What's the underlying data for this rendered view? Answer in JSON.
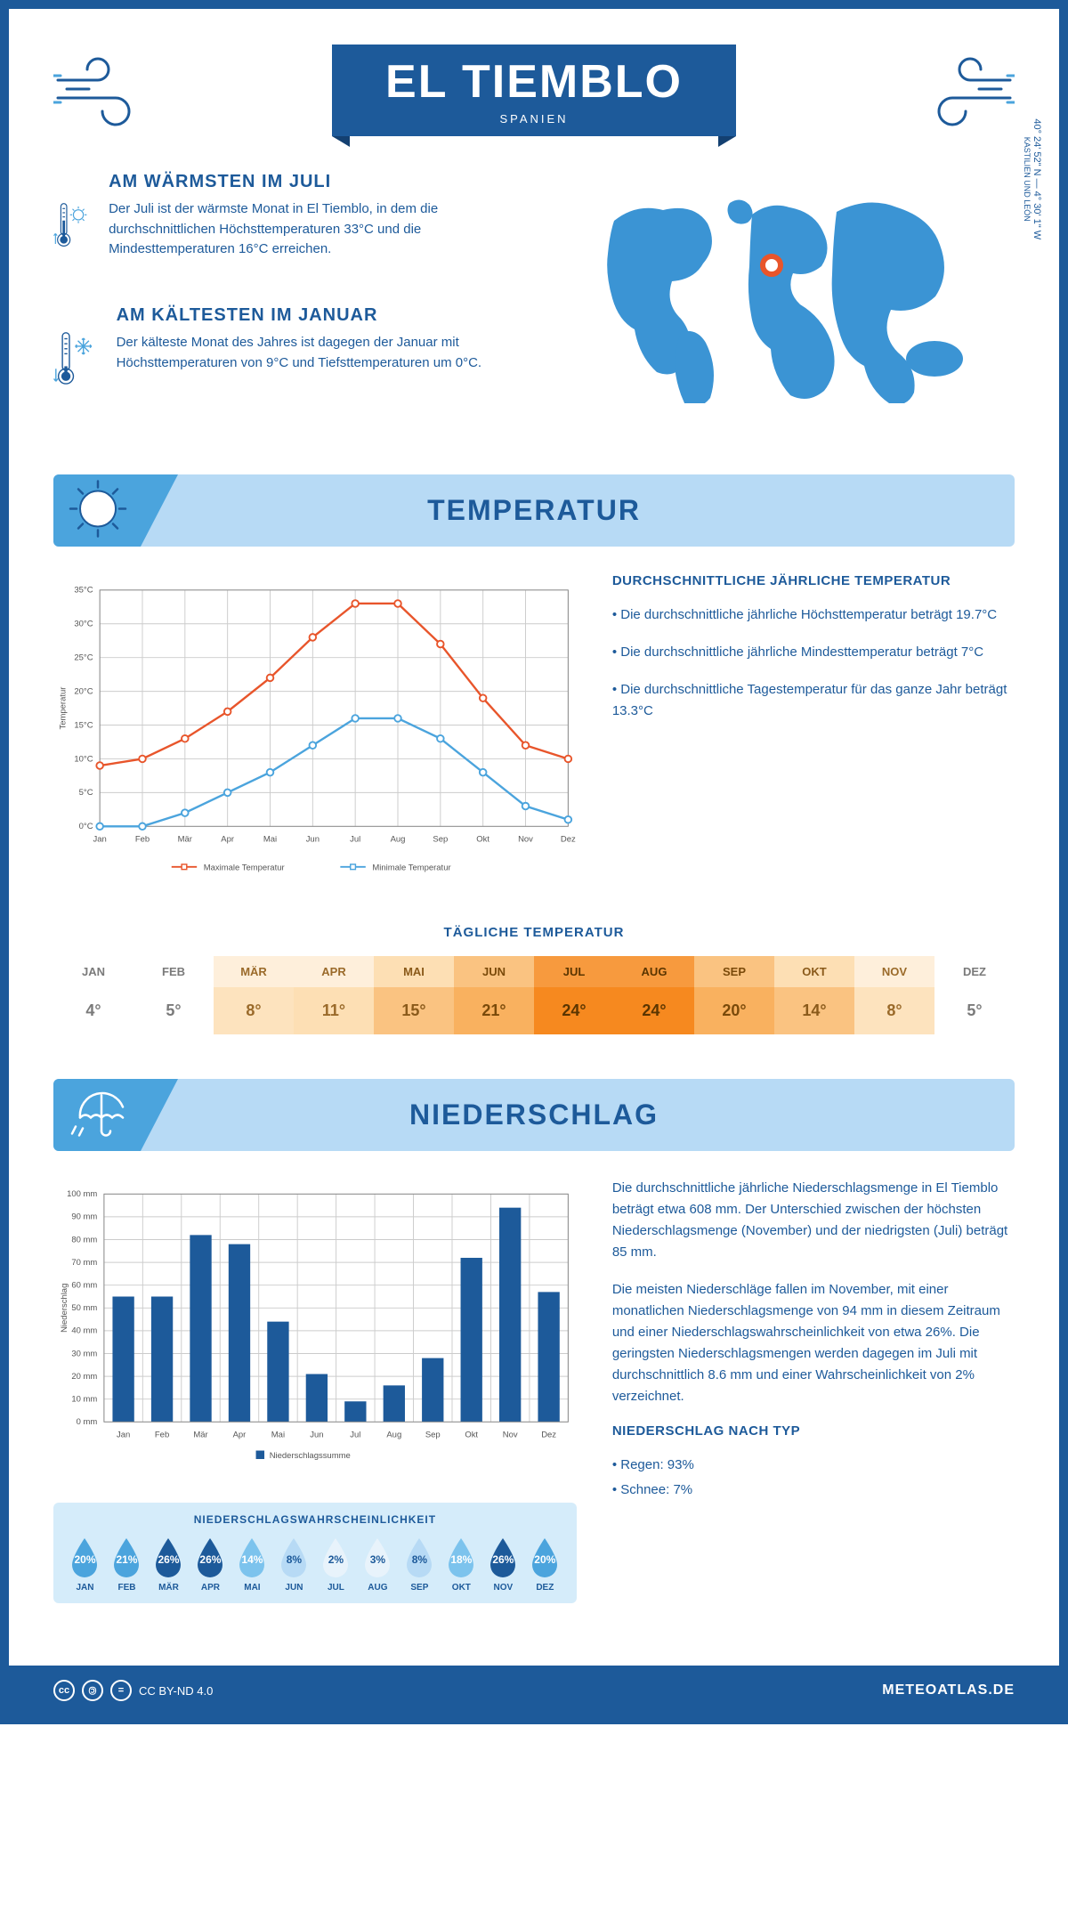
{
  "header": {
    "title": "EL TIEMBLO",
    "country": "SPANIEN"
  },
  "coords": {
    "text": "40° 24' 52\" N — 4° 30' 1\" W",
    "region": "KASTILIEN UND LEÓN"
  },
  "info_warm": {
    "heading": "AM WÄRMSTEN IM JULI",
    "text": "Der Juli ist der wärmste Monat in El Tiemblo, in dem die durchschnittlichen Höchsttemperaturen 33°C und die Mindesttemperaturen 16°C erreichen."
  },
  "info_cold": {
    "heading": "AM KÄLTESTEN IM JANUAR",
    "text": "Der kälteste Monat des Jahres ist dagegen der Januar mit Höchsttemperaturen von 9°C und Tiefsttemperaturen um 0°C."
  },
  "sections": {
    "temp": "TEMPERATUR",
    "precip": "NIEDERSCHLAG"
  },
  "temp_chart": {
    "type": "line",
    "months": [
      "Jan",
      "Feb",
      "Mär",
      "Apr",
      "Mai",
      "Jun",
      "Jul",
      "Aug",
      "Sep",
      "Okt",
      "Nov",
      "Dez"
    ],
    "max_values": [
      9,
      10,
      13,
      17,
      22,
      28,
      33,
      33,
      27,
      19,
      12,
      10
    ],
    "min_values": [
      0,
      0,
      2,
      5,
      8,
      12,
      16,
      16,
      13,
      8,
      3,
      1
    ],
    "max_color": "#e8552b",
    "min_color": "#4ba4dd",
    "ylim": [
      0,
      35
    ],
    "ytick_step": 5,
    "ylabel": "Temperatur",
    "legend_max": "Maximale Temperatur",
    "legend_min": "Minimale Temperatur",
    "grid_color": "#cccccc",
    "axis_fontsize": 10
  },
  "temp_desc": {
    "heading": "DURCHSCHNITTLICHE JÄHRLICHE TEMPERATUR",
    "bullets": [
      "• Die durchschnittliche jährliche Höchsttemperatur beträgt 19.7°C",
      "• Die durchschnittliche jährliche Mindesttemperatur beträgt 7°C",
      "• Die durchschnittliche Tagestemperatur für das ganze Jahr beträgt 13.3°C"
    ]
  },
  "daily": {
    "title": "TÄGLICHE TEMPERATUR",
    "months": [
      "JAN",
      "FEB",
      "MÄR",
      "APR",
      "MAI",
      "JUN",
      "JUL",
      "AUG",
      "SEP",
      "OKT",
      "NOV",
      "DEZ"
    ],
    "values": [
      "4°",
      "5°",
      "8°",
      "11°",
      "15°",
      "21°",
      "24°",
      "24°",
      "20°",
      "14°",
      "8°",
      "5°"
    ],
    "header_colors": [
      "#ffffff",
      "#ffffff",
      "#feefdb",
      "#feefdb",
      "#fddfb4",
      "#fac381",
      "#f79a3e",
      "#f79a3e",
      "#fac381",
      "#fddfb4",
      "#feefdb",
      "#ffffff"
    ],
    "value_colors": [
      "#ffffff",
      "#ffffff",
      "#fde3be",
      "#fddfb4",
      "#fac381",
      "#f9b15f",
      "#f6891f",
      "#f6891f",
      "#f9b15f",
      "#fac381",
      "#fde3be",
      "#ffffff"
    ],
    "text_colors": [
      "#7a7a7a",
      "#7a7a7a",
      "#9a6a2a",
      "#9a6a2a",
      "#8a5a1a",
      "#7a4a0a",
      "#5a3500",
      "#5a3500",
      "#7a4a0a",
      "#8a5a1a",
      "#9a6a2a",
      "#7a7a7a"
    ]
  },
  "precip_chart": {
    "type": "bar",
    "months": [
      "Jan",
      "Feb",
      "Mär",
      "Apr",
      "Mai",
      "Jun",
      "Jul",
      "Aug",
      "Sep",
      "Okt",
      "Nov",
      "Dez"
    ],
    "values": [
      55,
      55,
      82,
      78,
      44,
      21,
      9,
      16,
      28,
      72,
      94,
      57
    ],
    "bar_color": "#1d5a9a",
    "ylim": [
      0,
      100
    ],
    "ytick_step": 10,
    "ylabel": "Niederschlag",
    "legend": "Niederschlagssumme",
    "grid_color": "#cccccc",
    "y_unit": "mm"
  },
  "precip_desc": {
    "para1": "Die durchschnittliche jährliche Niederschlagsmenge in El Tiemblo beträgt etwa 608 mm. Der Unterschied zwischen der höchsten Niederschlagsmenge (November) und der niedrigsten (Juli) beträgt 85 mm.",
    "para2": "Die meisten Niederschläge fallen im November, mit einer monatlichen Niederschlagsmenge von 94 mm in diesem Zeitraum und einer Niederschlagswahrscheinlichkeit von etwa 26%. Die geringsten Niederschlagsmengen werden dagegen im Juli mit durchschnittlich 8.6 mm und einer Wahrscheinlichkeit von 2% verzeichnet.",
    "type_heading": "NIEDERSCHLAG NACH TYP",
    "type1": "• Regen: 93%",
    "type2": "• Schnee: 7%"
  },
  "prob": {
    "title": "NIEDERSCHLAGSWAHRSCHEINLICHKEIT",
    "months": [
      "JAN",
      "FEB",
      "MÄR",
      "APR",
      "MAI",
      "JUN",
      "JUL",
      "AUG",
      "SEP",
      "OKT",
      "NOV",
      "DEZ"
    ],
    "values": [
      "20%",
      "21%",
      "26%",
      "26%",
      "14%",
      "8%",
      "2%",
      "3%",
      "8%",
      "18%",
      "26%",
      "20%"
    ],
    "colors": [
      "#4ba4dd",
      "#4ba4dd",
      "#1d5a9a",
      "#1d5a9a",
      "#7cc3ed",
      "#b7daf5",
      "#e8f3fb",
      "#e8f3fb",
      "#b7daf5",
      "#7cc3ed",
      "#1d5a9a",
      "#4ba4dd"
    ],
    "text_colors": [
      "#fff",
      "#fff",
      "#fff",
      "#fff",
      "#fff",
      "#1d5a9a",
      "#1d5a9a",
      "#1d5a9a",
      "#1d5a9a",
      "#fff",
      "#fff",
      "#fff"
    ]
  },
  "footer": {
    "license": "CC BY-ND 4.0",
    "site": "METEOATLAS.DE"
  },
  "colors": {
    "primary": "#1d5a9a",
    "light_blue": "#b7daf5",
    "mid_blue": "#4ba4dd"
  }
}
